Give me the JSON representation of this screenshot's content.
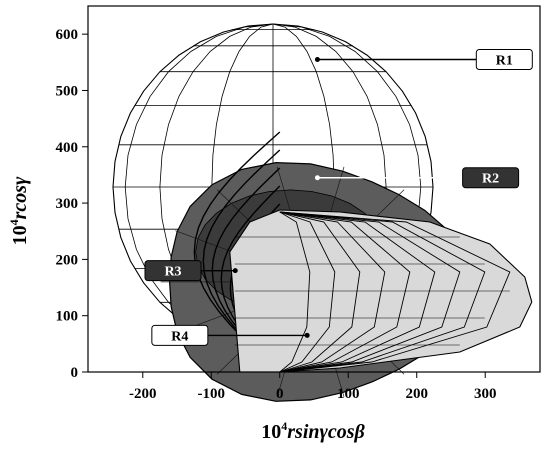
{
  "chart_data": {
    "type": "diagram",
    "xlabel": {
      "base": "10",
      "exp": "4",
      "rest": "rsin",
      "gamma": "γ",
      "cos": "cos",
      "beta": "β"
    },
    "ylabel": {
      "base": "10",
      "exp": "4",
      "rest": "rcos",
      "gamma": "γ"
    },
    "xlim": [
      -280,
      380
    ],
    "ylim": [
      0,
      650
    ],
    "x_ticks": [
      "-200",
      "-100",
      "0",
      "100",
      "200",
      "300"
    ],
    "x_tick_values": [
      -200,
      -100,
      0,
      100,
      200,
      300
    ],
    "y_ticks": [
      "0",
      "100",
      "200",
      "300",
      "400",
      "500",
      "600"
    ],
    "y_tick_values": [
      0,
      100,
      200,
      300,
      400,
      500,
      600
    ],
    "regions": [
      {
        "label": "R1",
        "style": "white-wireframe",
        "label_fill": "#ffffff",
        "label_text": "#000000",
        "arrow_from": [
          287,
          555
        ],
        "arrow_to": [
          55,
          555
        ]
      },
      {
        "label": "R2",
        "style": "dark-gray",
        "label_fill": "#333333",
        "label_text": "#ffffff",
        "arrow_from": [
          267,
          345
        ],
        "arrow_to": [
          55,
          345
        ]
      },
      {
        "label": "R3",
        "style": "black-outline",
        "label_fill": "#333333",
        "label_text": "#ffffff",
        "arrow_from": [
          -115,
          180
        ],
        "arrow_to": [
          -65,
          180
        ]
      },
      {
        "label": "R4",
        "style": "light-gray",
        "label_fill": "#ffffff",
        "label_text": "#000000",
        "arrow_from": [
          -105,
          65
        ],
        "arrow_to": [
          40,
          65
        ]
      }
    ]
  }
}
